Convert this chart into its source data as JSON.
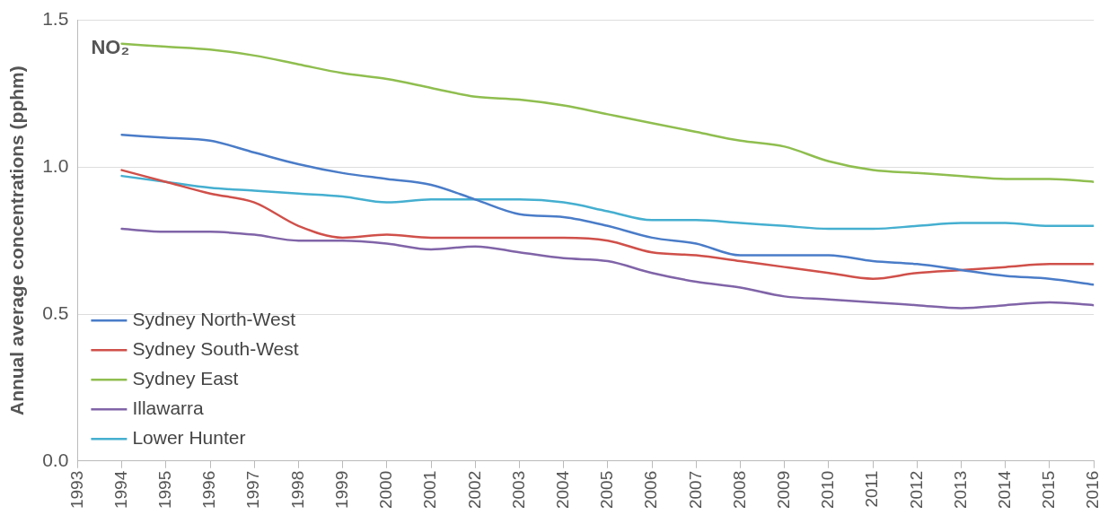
{
  "chart_data": {
    "type": "line",
    "ylabel": "Annual average concentrations (pphm)",
    "annotations": [
      "NO₂"
    ],
    "x": [
      1994,
      1995,
      1996,
      1997,
      1998,
      1999,
      2000,
      2001,
      2002,
      2003,
      2004,
      2005,
      2006,
      2007,
      2008,
      2009,
      2010,
      2011,
      2012,
      2013,
      2014,
      2015,
      2016
    ],
    "series": [
      {
        "name": "Sydney North-West",
        "color": "#4a7cc8",
        "values": [
          1.11,
          1.1,
          1.09,
          1.05,
          1.01,
          0.98,
          0.96,
          0.94,
          0.89,
          0.84,
          0.83,
          0.8,
          0.76,
          0.74,
          0.7,
          0.7,
          0.7,
          0.68,
          0.67,
          0.65,
          0.63,
          0.62,
          0.6
        ]
      },
      {
        "name": "Sydney South-West",
        "color": "#d0504a",
        "values": [
          0.99,
          0.95,
          0.91,
          0.88,
          0.8,
          0.76,
          0.77,
          0.76,
          0.76,
          0.76,
          0.76,
          0.75,
          0.71,
          0.7,
          0.68,
          0.66,
          0.64,
          0.62,
          0.64,
          0.65,
          0.66,
          0.67,
          0.67
        ]
      },
      {
        "name": "Sydney East",
        "color": "#8fbe4f",
        "values": [
          1.42,
          1.41,
          1.4,
          1.38,
          1.35,
          1.32,
          1.3,
          1.27,
          1.24,
          1.23,
          1.21,
          1.18,
          1.15,
          1.12,
          1.09,
          1.07,
          1.02,
          0.99,
          0.98,
          0.97,
          0.96,
          0.96,
          0.95
        ]
      },
      {
        "name": "Illawarra",
        "color": "#8064a8",
        "values": [
          0.79,
          0.78,
          0.78,
          0.77,
          0.75,
          0.75,
          0.74,
          0.72,
          0.73,
          0.71,
          0.69,
          0.68,
          0.64,
          0.61,
          0.59,
          0.56,
          0.55,
          0.54,
          0.53,
          0.52,
          0.53,
          0.54,
          0.53
        ]
      },
      {
        "name": "Lower Hunter",
        "color": "#45afd0",
        "values": [
          0.97,
          0.95,
          0.93,
          0.92,
          0.91,
          0.9,
          0.88,
          0.89,
          0.89,
          0.89,
          0.88,
          0.85,
          0.82,
          0.82,
          0.81,
          0.8,
          0.79,
          0.79,
          0.8,
          0.81,
          0.81,
          0.8,
          0.8
        ]
      }
    ],
    "xlim": [
      1993,
      2016
    ],
    "xticks": [
      1993,
      1994,
      1995,
      1996,
      1997,
      1998,
      1999,
      2000,
      2001,
      2002,
      2003,
      2004,
      2005,
      2006,
      2007,
      2008,
      2009,
      2010,
      2011,
      2012,
      2013,
      2014,
      2015,
      2016
    ],
    "ylim": [
      0,
      1.5
    ],
    "yticks": [
      {
        "value": 0,
        "label": "0.0"
      },
      {
        "value": 0.5,
        "label": "0.5"
      },
      {
        "value": 1,
        "label": "1.0"
      },
      {
        "value": 1.5,
        "label": "1.5"
      }
    ],
    "grid": "y",
    "legend": "bottom left",
    "marker": "none",
    "line_style": "solid"
  }
}
